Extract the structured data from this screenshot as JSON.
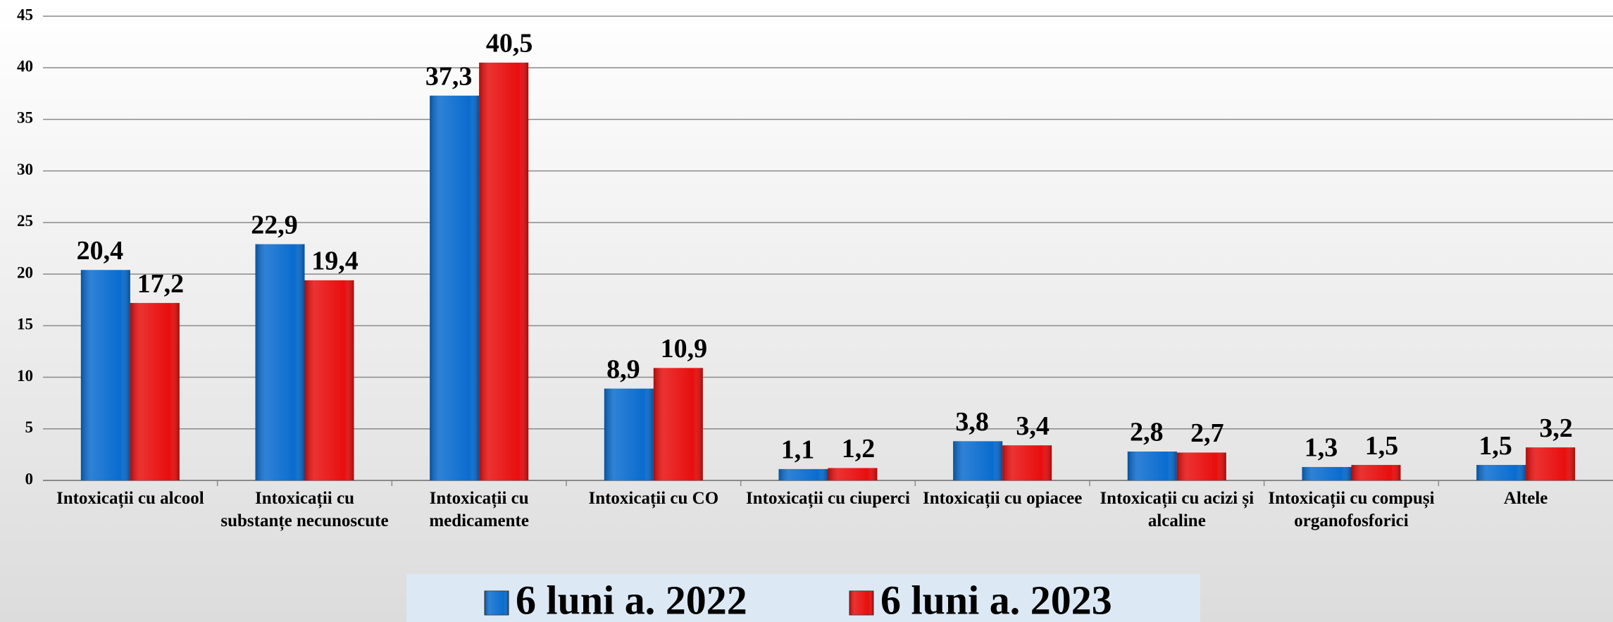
{
  "chart_data": {
    "type": "bar",
    "categories": [
      "Intoxicații cu alcool",
      "Intoxicații cu substanțe necunoscute",
      "Intoxicații cu medicamente",
      "Intoxicații cu CO",
      "Intoxicații cu ciuperci",
      "Intoxicații cu opiacee",
      "Intoxicații cu acizi și alcaline",
      "Intoxicații cu compuși organofosforici",
      "Altele"
    ],
    "series": [
      {
        "name": "6 luni a. 2022",
        "color": "#0a6ccf",
        "values": [
          20.4,
          22.9,
          37.3,
          8.9,
          1.1,
          3.8,
          2.8,
          1.3,
          1.5
        ],
        "value_labels": [
          "20,4",
          "22,9",
          "37,3",
          "8,9",
          "1,1",
          "3,8",
          "2,8",
          "1,3",
          "1,5"
        ]
      },
      {
        "name": "6 luni a. 2023",
        "color": "#e80e0e",
        "values": [
          17.2,
          19.4,
          40.5,
          10.9,
          1.2,
          3.4,
          2.7,
          1.5,
          3.2
        ],
        "value_labels": [
          "17,2",
          "19,4",
          "40,5",
          "10,9",
          "1,2",
          "3,4",
          "2,7",
          "1,5",
          "3,2"
        ]
      }
    ],
    "ylim": [
      0,
      45
    ],
    "yticks": [
      0,
      5,
      10,
      15,
      20,
      25,
      30,
      35,
      40,
      45
    ],
    "grid": true,
    "legend": "bottom"
  }
}
